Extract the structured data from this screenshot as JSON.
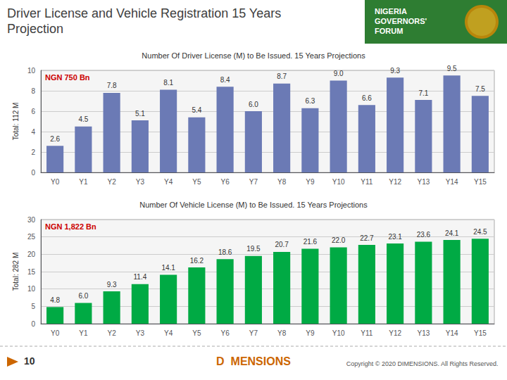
{
  "title": "Driver License and Vehicle Registration 15 Years\nProjection",
  "annotations": [
    "NIGERIA\nGOVERNORS'\nFORUM",
    "10",
    "D  MENSIONS",
    "Copyright © 2020 DIMENSIONS. All Rights Reserved."
  ],
  "chart_data": [
    {
      "type": "bar",
      "title": "Number Of Driver License (M) to Be Issued. 15 Years Projections",
      "subtitle": "NGN 750 Bn",
      "ylabel": "Total: 112 M",
      "categories": [
        "Y0",
        "Y1",
        "Y2",
        "Y3",
        "Y4",
        "Y5",
        "Y6",
        "Y7",
        "Y8",
        "Y9",
        "Y10",
        "Y11",
        "Y12",
        "Y13",
        "Y14",
        "Y15"
      ],
      "values": [
        2.6,
        4.5,
        7.8,
        5.1,
        8.1,
        5.4,
        8.4,
        6.0,
        8.7,
        6.3,
        9.0,
        6.6,
        9.3,
        7.1,
        9.5,
        7.5
      ],
      "value_labels": [
        "2.6",
        "4.5",
        "7.8",
        "5.1",
        "8.1",
        "5.4",
        "8.4",
        "6.0",
        "8.7",
        "6.3",
        "9.0",
        "6.6",
        "9.3",
        "7.1",
        "9.5",
        "7.5"
      ],
      "color": "#6b7ab5",
      "ylim": [
        0,
        10
      ],
      "yticks": [
        0,
        2,
        4,
        6,
        8,
        10
      ],
      "grid": true,
      "data_labels": true
    },
    {
      "type": "bar",
      "title": "Number Of Vehicle License (M) to Be Issued. 15 Years Projections",
      "subtitle": "NGN 1,822 Bn",
      "ylabel": "Total: 282 M",
      "categories": [
        "Y0",
        "Y1",
        "Y2",
        "Y3",
        "Y4",
        "Y5",
        "Y6",
        "Y7",
        "Y8",
        "Y9",
        "Y10",
        "Y11",
        "Y12",
        "Y13",
        "Y14",
        "Y15"
      ],
      "values": [
        4.8,
        6.0,
        9.3,
        11.4,
        14.1,
        16.2,
        18.6,
        19.5,
        20.7,
        21.6,
        22.0,
        22.7,
        23.1,
        23.6,
        24.1,
        24.5
      ],
      "value_labels": [
        "4.8",
        "6.0",
        "9.3",
        "11.4",
        "14.1",
        "16.2",
        "18.6",
        "19.5",
        "20.7",
        "21.6",
        "22.0",
        "22.7",
        "23.1",
        "23.6",
        "24.1",
        "24.5"
      ],
      "color": "#00aa44",
      "ylim": [
        0,
        30
      ],
      "yticks": [
        0,
        5,
        10,
        15,
        20,
        25,
        30
      ],
      "grid": true,
      "data_labels": true
    }
  ]
}
